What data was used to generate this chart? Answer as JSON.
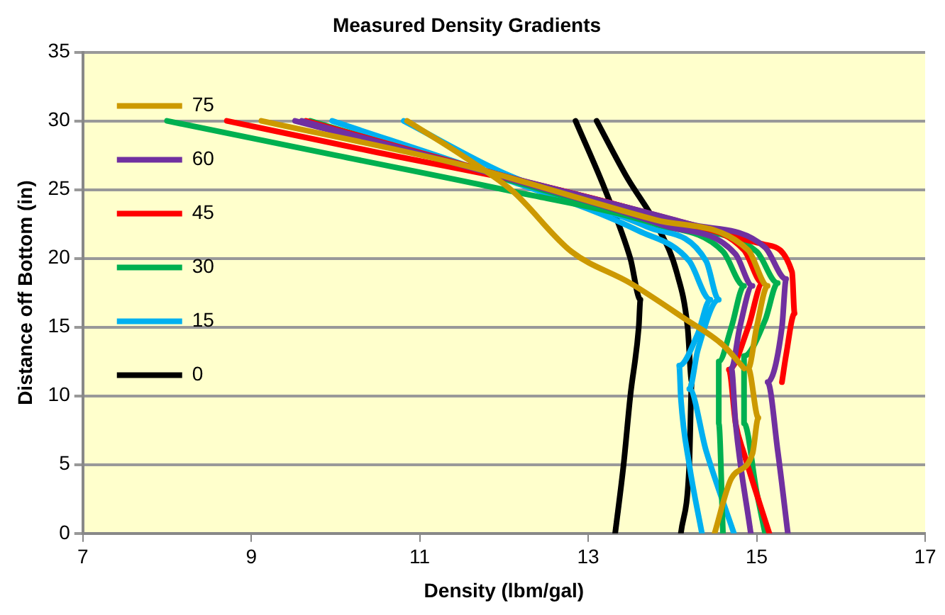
{
  "chart_data": {
    "type": "line",
    "title": "Measured Density Gradients",
    "xlabel": "Density (lbm/gal)",
    "ylabel": "Distance off Bottom (in)",
    "xlim": [
      7,
      17
    ],
    "xticks": [
      7,
      9,
      11,
      13,
      15,
      17
    ],
    "ylim": [
      0,
      35
    ],
    "yticks": [
      0,
      5,
      10,
      15,
      20,
      25,
      30,
      35
    ],
    "grid": "y",
    "legend": "top",
    "marker": "none",
    "line_style": "solid",
    "series": [
      {
        "name": "75",
        "color": "#cc9900",
        "x": [
          9.12,
          11.5,
          13.8,
          14.9,
          15.13,
          15,
          14.9,
          15.02,
          14.95,
          14.7,
          14.5
        ],
        "values": [
          30,
          26.8,
          22.8,
          20.6,
          18,
          15,
          12,
          8.4,
          5.8,
          4,
          0
        ]
      },
      {
        "color": "#cc9900",
        "x": [
          10.85,
          11.5,
          12.1,
          12.8,
          13.5,
          14.15,
          14.6,
          14.85
        ],
        "values": [
          30,
          27.5,
          24.9,
          20.5,
          18.2,
          15.6,
          13.7,
          12
        ]
      },
      {
        "name": "60",
        "color": "#7030a0",
        "x": [
          9.52,
          12,
          14.2,
          15.1,
          15.35,
          15.3,
          15.13,
          15.25,
          15.37
        ],
        "values": [
          30,
          26,
          22.5,
          20.8,
          18.5,
          15,
          11,
          6,
          0
        ]
      },
      {
        "color": "#7030a0",
        "x": [
          9.6,
          12,
          13.9,
          14.75,
          14.95,
          14.8,
          14.7,
          14.75,
          14.93
        ],
        "values": [
          30,
          25.9,
          22.4,
          20.3,
          18,
          15,
          12,
          8,
          0
        ]
      },
      {
        "name": "45",
        "color": "#ff0000",
        "x": [
          8.71,
          10.5,
          12.5,
          14.2,
          15.1,
          15.42,
          15.45,
          15.35,
          15.3
        ],
        "values": [
          30,
          27.7,
          25.2,
          22.5,
          21,
          19,
          16,
          13,
          11
        ]
      },
      {
        "color": "#ff0000",
        "x": [
          9.65,
          12,
          14,
          14.85,
          15.07,
          14.9,
          14.67,
          14.75,
          14.85,
          15.15
        ],
        "values": [
          30,
          26,
          22.7,
          20.6,
          18.2,
          15,
          11.9,
          8,
          5.8,
          0
        ]
      },
      {
        "name": "30",
        "color": "#00b050",
        "x": [
          8,
          10,
          12,
          13.8,
          14.6,
          14.85,
          14.7,
          14.55,
          14.55,
          14.6
        ],
        "values": [
          30,
          27.5,
          25,
          22.5,
          20.5,
          18,
          15,
          12.5,
          8,
          0
        ]
      },
      {
        "color": "#00b050",
        "x": [
          9.7,
          12,
          14,
          15,
          15.25,
          15.1,
          14.85,
          14.85,
          15,
          15.1
        ],
        "values": [
          30,
          25.8,
          22.3,
          20.5,
          18.2,
          15.5,
          12.9,
          8,
          3,
          0
        ]
      },
      {
        "name": "15",
        "color": "#00b0f0",
        "x": [
          9.96,
          12,
          13.6,
          14.2,
          14.45,
          14.3,
          14.08,
          14.1,
          14.2,
          14.35
        ],
        "values": [
          30,
          25.8,
          22,
          19.8,
          17,
          14.5,
          12.2,
          9.8,
          5,
          0
        ]
      },
      {
        "color": "#00b0f0",
        "x": [
          10.81,
          12,
          13.7,
          14.4,
          14.55,
          14.3,
          14.2,
          14.4,
          14.73
        ],
        "values": [
          30,
          26.2,
          22.3,
          19.8,
          17,
          13.3,
          10.5,
          6,
          0
        ]
      },
      {
        "name": "0",
        "color": "#000000",
        "x": [
          12.85,
          13.2,
          13.5,
          13.62,
          13.6,
          13.5,
          13.42,
          13.32
        ],
        "values": [
          30,
          25,
          20,
          17,
          15,
          10,
          5,
          0
        ]
      },
      {
        "color": "#000000",
        "x": [
          13.1,
          13.45,
          13.85,
          14.05,
          14.18,
          14.23,
          14.2,
          14.1
        ],
        "values": [
          30,
          26,
          22,
          19,
          15,
          11,
          5,
          0
        ]
      }
    ]
  }
}
